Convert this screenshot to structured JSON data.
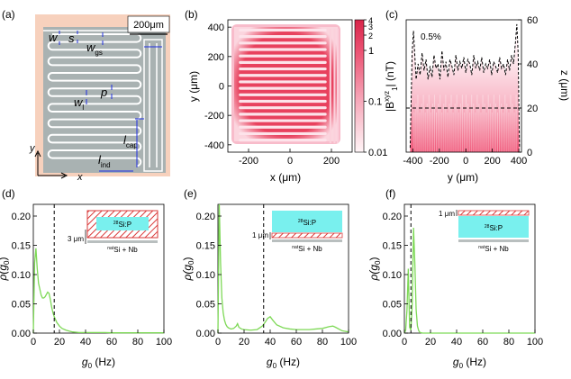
{
  "panels": {
    "a": {
      "tag": "(a)",
      "scale_bar": "200μm",
      "labels": {
        "w": "w",
        "s": "s",
        "wgs_main": "w",
        "wgs_sub": "gs",
        "p": "p",
        "wl_main": "w",
        "wl_sub": "l",
        "lcap_main": "l",
        "lcap_sub": "cap",
        "lind_main": "l",
        "lind_sub": "ind",
        "x": "x",
        "y": "y"
      },
      "colors": {
        "substrate": "#f7d1bd",
        "metal": "#a9b2b2",
        "trace": "#ffffff",
        "annotation": "#1f2fe0"
      }
    },
    "b": {
      "tag": "(b)",
      "xlabel": "x (μm)",
      "ylabel": "y (μm)",
      "xticks": [
        "-200",
        "0",
        "200"
      ],
      "yticks": [
        "400",
        "200",
        "0",
        "-200",
        "-400"
      ],
      "colorbar_label": "|B",
      "colorbar_sup": "xyz",
      "colorbar_sub": "1",
      "colorbar_unit": "| (nT)",
      "colorbar_ticks": [
        "4",
        "3",
        "2",
        "1",
        "0.1",
        "0.01"
      ],
      "colors": {
        "high": "#e8415e",
        "low": "#fff2f5"
      }
    },
    "c": {
      "tag": "(c)",
      "xlabel": "y (μm)",
      "ylabel": "z (μm)",
      "xticks": [
        "-400",
        "-200",
        "0",
        "200",
        "400"
      ],
      "yticks": [
        "0",
        "20",
        "40",
        "60"
      ],
      "annotation": "0.5%",
      "dashed_level": 20
    },
    "d": {
      "tag": "(d)",
      "xlabel_main": "g",
      "xlabel_sub": "0",
      "xlabel_unit": " (Hz)",
      "ylabel_main": "ρ(g",
      "ylabel_sub": "0",
      "ylabel_end": ")",
      "xticks": [
        "0",
        "20",
        "40",
        "60",
        "80",
        "100"
      ],
      "yticks": [
        "0.00",
        "0.05",
        "0.10",
        "0.15",
        "0.20"
      ],
      "inset_layer": "Si:P",
      "inset_iso": "28",
      "inset_base_iso": "nat",
      "inset_base": "Si + Nb",
      "thickness": "3 μm",
      "dashed_x": 16
    },
    "e": {
      "tag": "(e)",
      "xlabel_main": "g",
      "xlabel_sub": "0",
      "xlabel_unit": " (Hz)",
      "ylabel_main": "ρ(g",
      "ylabel_sub": "0",
      "ylabel_end": ")",
      "xticks": [
        "0",
        "20",
        "40",
        "60",
        "80",
        "100"
      ],
      "yticks": [
        "0.00",
        "0.05",
        "0.10",
        "0.15",
        "0.20"
      ],
      "inset_layer": "Si:P",
      "inset_iso": "28",
      "inset_base_iso": "nat",
      "inset_base": "Si + Nb",
      "thickness": "1 μm",
      "dashed_x": 35
    },
    "f": {
      "tag": "(f)",
      "xlabel_main": "g",
      "xlabel_sub": "0",
      "xlabel_unit": " (Hz)",
      "ylabel_main": "ρ(g",
      "ylabel_sub": "0",
      "ylabel_end": ")",
      "xticks": [
        "0",
        "20",
        "40",
        "60",
        "80",
        "100"
      ],
      "yticks": [
        "0.00",
        "0.05",
        "0.10",
        "0.15",
        "0.20"
      ],
      "inset_layer": "Si:P",
      "inset_iso": "28",
      "inset_base_iso": "nat",
      "inset_base": "Si + Nb",
      "thickness": "1 μm",
      "dashed_x": 5
    }
  },
  "colors": {
    "curve": "#7ed957",
    "cyan": "#79f0ee",
    "hatch": "#d93a3a",
    "grey": "#b9bfbf"
  },
  "chart_data": [
    {
      "id": "c",
      "type": "line",
      "title": "",
      "xlabel": "y (μm)",
      "ylabel": "z (μm)",
      "xlim": [
        -450,
        420
      ],
      "ylim": [
        0,
        60
      ],
      "series": [
        {
          "name": "0.5% contour",
          "x": [
            -420,
            -405,
            -395,
            -385,
            -375,
            -360,
            -345,
            -330,
            -315,
            -300,
            -285,
            -270,
            -255,
            -240,
            -225,
            -210,
            -195,
            -180,
            -165,
            -150,
            -135,
            -120,
            -105,
            -90,
            -75,
            -60,
            -45,
            -30,
            -15,
            0,
            15,
            30,
            45,
            60,
            75,
            90,
            105,
            120,
            135,
            150,
            165,
            180,
            195,
            210,
            225,
            240,
            255,
            270,
            285,
            300,
            315,
            330,
            345,
            360,
            375,
            385,
            395,
            405
          ],
          "y": [
            2,
            45,
            55,
            44,
            33,
            40,
            35,
            45,
            37,
            42,
            33,
            39,
            34,
            44,
            38,
            40,
            33,
            46,
            37,
            41,
            34,
            42,
            39,
            35,
            44,
            37,
            41,
            38,
            43,
            36,
            42,
            40,
            35,
            44,
            38,
            41,
            37,
            43,
            36,
            40,
            38,
            42,
            35,
            41,
            39,
            36,
            43,
            38,
            40,
            35,
            42,
            37,
            44,
            40,
            50,
            58,
            45,
            2
          ]
        }
      ]
    },
    {
      "id": "d",
      "type": "line",
      "xlabel": "g0 (Hz)",
      "ylabel": "ρ(g0)",
      "xlim": [
        0,
        100
      ],
      "ylim": [
        0,
        0.22
      ],
      "series": [
        {
          "name": "3 μm layer",
          "x": [
            0,
            1,
            2,
            3,
            4,
            5,
            6,
            7,
            8,
            9,
            10,
            11,
            12,
            13,
            14,
            15,
            16,
            18,
            20,
            22,
            25,
            28,
            30,
            35,
            40,
            45,
            50,
            55,
            60,
            70,
            80,
            90,
            100
          ],
          "y": [
            0,
            0.12,
            0.145,
            0.11,
            0.085,
            0.075,
            0.065,
            0.06,
            0.06,
            0.062,
            0.066,
            0.07,
            0.068,
            0.058,
            0.045,
            0.035,
            0.028,
            0.018,
            0.012,
            0.008,
            0.005,
            0.003,
            0.002,
            0.001,
            0.001,
            0.001,
            0.001,
            0.001,
            0.0005,
            0.0005,
            0.0005,
            0.0005,
            0.0005
          ]
        }
      ]
    },
    {
      "id": "e",
      "type": "line",
      "xlabel": "g0 (Hz)",
      "ylabel": "ρ(g0)",
      "xlim": [
        0,
        100
      ],
      "ylim": [
        0,
        0.22
      ],
      "series": [
        {
          "name": "1 μm layer (bottom)",
          "x": [
            0,
            1,
            2,
            3,
            4,
            5,
            6,
            7,
            8,
            10,
            12,
            14,
            15,
            16,
            18,
            20,
            25,
            30,
            34,
            36,
            38,
            40,
            42,
            45,
            50,
            55,
            60,
            65,
            70,
            75,
            80,
            85,
            88,
            90,
            95,
            100
          ],
          "y": [
            0,
            0.22,
            0.12,
            0.06,
            0.035,
            0.022,
            0.015,
            0.011,
            0.009,
            0.007,
            0.008,
            0.012,
            0.016,
            0.01,
            0.007,
            0.006,
            0.005,
            0.006,
            0.012,
            0.018,
            0.025,
            0.028,
            0.022,
            0.014,
            0.009,
            0.007,
            0.006,
            0.006,
            0.006,
            0.007,
            0.008,
            0.011,
            0.012,
            0.01,
            0.004,
            0.002
          ]
        }
      ]
    },
    {
      "id": "f",
      "type": "line",
      "xlabel": "g0 (Hz)",
      "ylabel": "ρ(g0)",
      "xlim": [
        0,
        100
      ],
      "ylim": [
        0,
        0.22
      ],
      "series": [
        {
          "name": "1 μm layer (top)",
          "x": [
            0,
            1,
            2,
            3,
            4,
            5,
            6,
            7,
            8,
            9,
            10,
            11,
            12,
            14,
            20,
            40,
            60,
            80,
            100
          ],
          "y": [
            0,
            0.005,
            0.04,
            0.11,
            0.01,
            0.005,
            0.05,
            0.18,
            0.12,
            0.04,
            0.012,
            0.004,
            0.001,
            0,
            0,
            0,
            0,
            0,
            0
          ]
        }
      ]
    }
  ]
}
